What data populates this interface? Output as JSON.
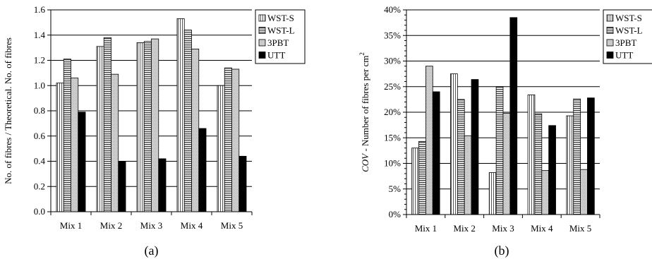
{
  "chart_data": [
    {
      "type": "bar",
      "panel_label": "(a)",
      "ylabel": "No. of fibres / Theoretical. No. of fibres",
      "ylim": [
        0,
        1.6
      ],
      "ytick_step": 0.2,
      "ytick_decimals": 1,
      "ytick_suffix": "",
      "grid": true,
      "legend_position": "top-right",
      "categories": [
        "Mix 1",
        "Mix 2",
        "Mix 3",
        "Mix 4",
        "Mix 5"
      ],
      "series": [
        {
          "name": "WST-S",
          "pattern": "vstripe",
          "values": [
            1.02,
            1.31,
            1.34,
            1.53,
            1.0
          ]
        },
        {
          "name": "WST-L",
          "pattern": "hstripe",
          "values": [
            1.21,
            1.38,
            1.35,
            1.44,
            1.14
          ]
        },
        {
          "name": "3PBT",
          "pattern": "dots",
          "values": [
            1.06,
            1.09,
            1.37,
            1.29,
            1.13
          ]
        },
        {
          "name": "UTT",
          "pattern": "solid",
          "values": [
            0.79,
            0.4,
            0.42,
            0.66,
            0.44
          ]
        }
      ]
    },
    {
      "type": "bar",
      "panel_label": "(b)",
      "ylabel_italic": "COV",
      "ylabel_rest": " - Number of fibres per cm",
      "ylabel_sup": "2",
      "ylim": [
        0,
        40
      ],
      "ytick_step": 5,
      "ytick_decimals": 0,
      "ytick_suffix": "%",
      "grid": true,
      "legend_position": "top-right",
      "categories": [
        "Mix 1",
        "Mix 2",
        "Mix 3",
        "Mix 4",
        "Mix 5"
      ],
      "series": [
        {
          "name": "WST-S",
          "pattern": "vstripe",
          "values": [
            13.0,
            27.5,
            8.2,
            23.4,
            19.3
          ]
        },
        {
          "name": "WST-L",
          "pattern": "hstripe",
          "values": [
            14.3,
            22.5,
            25.0,
            19.7,
            22.6
          ]
        },
        {
          "name": "3PBT",
          "pattern": "dots",
          "values": [
            29.0,
            15.4,
            19.8,
            8.6,
            8.8
          ]
        },
        {
          "name": "UTT",
          "pattern": "solid",
          "values": [
            24.0,
            26.4,
            38.5,
            17.4,
            22.8
          ]
        }
      ]
    }
  ]
}
